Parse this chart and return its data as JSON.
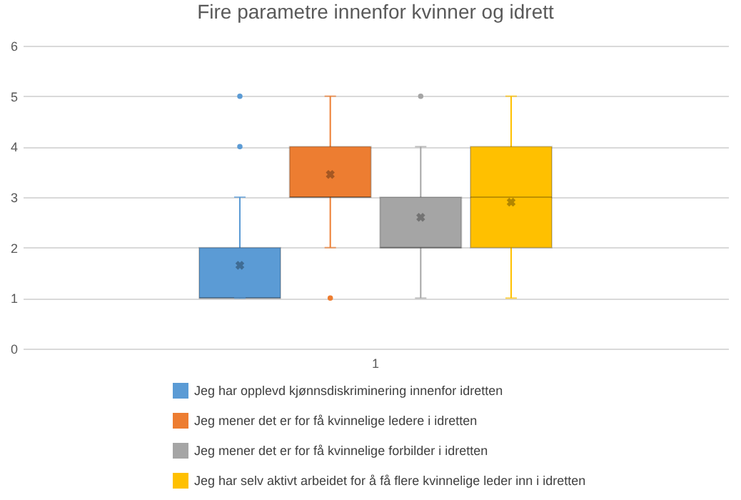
{
  "chart_data": {
    "type": "box",
    "title": "Fire parametre innenfor kvinner og idrett",
    "categories": [
      "1"
    ],
    "series": [
      {
        "name": "Jeg har opplevd kjønnsdiskriminering innenfor idretten",
        "color": "#5b9bd5",
        "boxes": [
          {
            "low": 1,
            "q1": 1,
            "median": 1,
            "q3": 2,
            "high": 3,
            "mean": 1.65,
            "outliers": [
              4,
              5
            ]
          }
        ]
      },
      {
        "name": "Jeg mener det er for få kvinnelige ledere i idretten",
        "color": "#ed7d31",
        "boxes": [
          {
            "low": 2,
            "q1": 3,
            "median": 3,
            "q3": 4,
            "high": 5,
            "mean": 3.45,
            "outliers": [
              1
            ]
          }
        ]
      },
      {
        "name": "Jeg mener det er for få kvinnelige forbilder i idretten",
        "color": "#a5a5a5",
        "boxes": [
          {
            "low": 1,
            "q1": 2,
            "median": 2,
            "q3": 3,
            "high": 4,
            "mean": 2.6,
            "outliers": [
              5
            ]
          }
        ]
      },
      {
        "name": "Jeg har selv aktivt arbeidet for å få flere kvinnelige leder inn i idretten",
        "color": "#ffc000",
        "boxes": [
          {
            "low": 1,
            "q1": 2,
            "median": 3,
            "q3": 4,
            "high": 5,
            "mean": 2.9
          }
        ]
      }
    ],
    "ylim": [
      0,
      6
    ],
    "yticks": [
      0,
      1,
      2,
      3,
      4,
      5,
      6
    ],
    "grid": "y",
    "legend": "bottom"
  }
}
